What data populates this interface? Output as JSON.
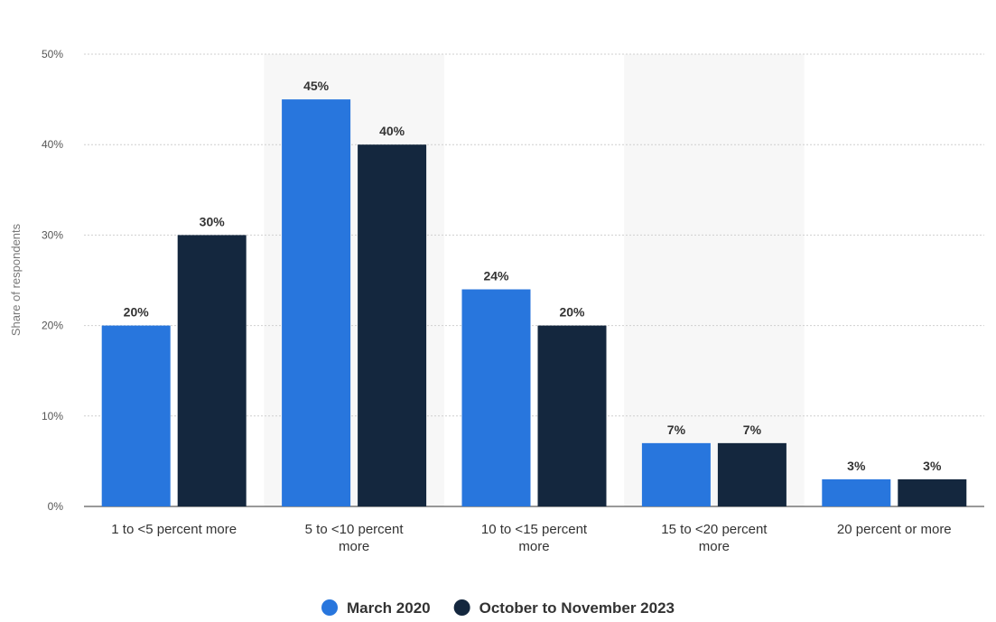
{
  "chart_data": {
    "type": "bar",
    "categories": [
      [
        "1 to <5 percent more"
      ],
      [
        "5 to <10 percent",
        "more"
      ],
      [
        "10 to <15 percent",
        "more"
      ],
      [
        "15 to <20 percent",
        "more"
      ],
      [
        "20 percent or more"
      ]
    ],
    "series": [
      {
        "name": "March 2020",
        "color": "#2876dd",
        "values": [
          20,
          45,
          24,
          7,
          3
        ]
      },
      {
        "name": "October to November 2023",
        "color": "#14273e",
        "values": [
          30,
          40,
          20,
          7,
          3
        ]
      }
    ],
    "ylabel": "Share of respondents",
    "ylim": [
      0,
      50
    ],
    "yticks": [
      "0%",
      "10%",
      "20%",
      "30%",
      "40%",
      "50%"
    ],
    "value_suffix": "%",
    "grid": true,
    "legend_position": "bottom-center",
    "band_color": "#f7f7f7",
    "grid_color": "#cfcfcf"
  }
}
